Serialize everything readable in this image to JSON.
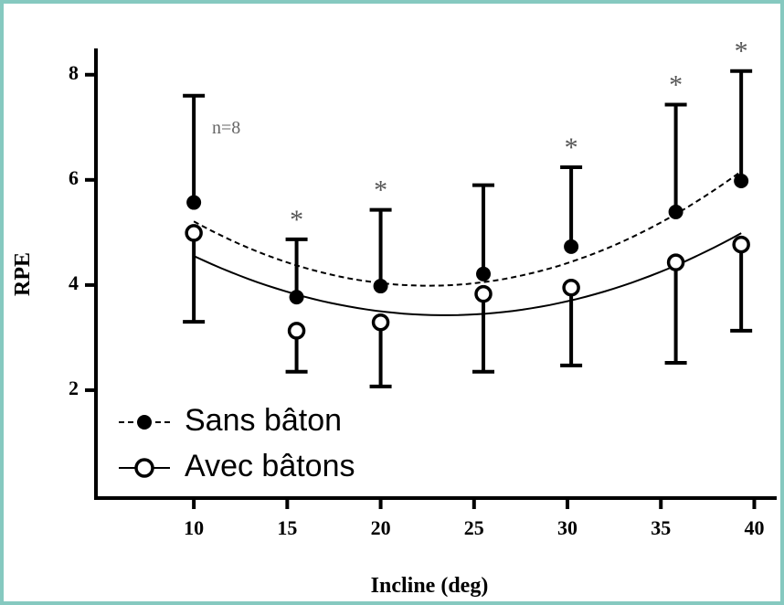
{
  "chart_data": {
    "type": "errorbar",
    "xlabel": "Incline (deg)",
    "ylabel": "RPE",
    "x": [
      10,
      15.5,
      20,
      25.5,
      30.2,
      35.8,
      39.3
    ],
    "xlim": [
      4.76,
      41.2
    ],
    "xticks": [
      10,
      15,
      20,
      25,
      30,
      35,
      40
    ],
    "ylim": [
      0,
      8.5
    ],
    "yticks": [
      2,
      4,
      6,
      8
    ],
    "series": [
      {
        "name": "Sans bâton",
        "color": "#000000",
        "marker": "filled",
        "fit": "dashed",
        "error_direction": "up",
        "values": [
          5.57,
          3.77,
          3.98,
          4.21,
          4.73,
          5.39,
          5.98
        ],
        "errors": [
          2.03,
          1.1,
          1.45,
          1.69,
          1.51,
          2.04,
          2.09
        ]
      },
      {
        "name": "Avec bâtons",
        "color": "#000000",
        "marker": "open",
        "fit": "solid",
        "error_direction": "down",
        "values": [
          4.99,
          3.13,
          3.29,
          3.83,
          3.95,
          4.43,
          4.77
        ],
        "errors": [
          1.69,
          0.78,
          1.22,
          1.48,
          1.48,
          1.91,
          1.64
        ]
      }
    ],
    "sample_note": "n=8",
    "significance_marker": "*",
    "significant": [
      false,
      true,
      true,
      false,
      true,
      true,
      true
    ],
    "legend": "lower left"
  }
}
